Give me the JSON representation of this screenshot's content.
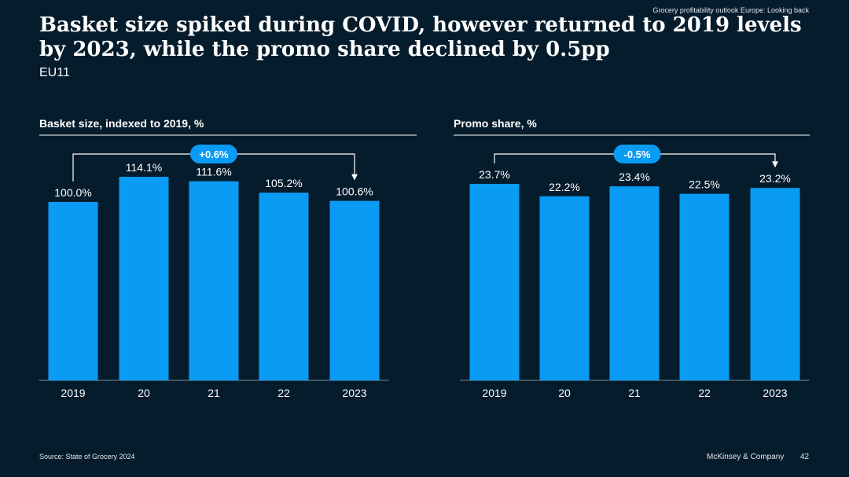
{
  "header": {
    "section": "Grocery profitability outlook Europe: Looking back",
    "title": "Basket size spiked during COVID, however returned to 2019 levels by 2023, while the promo share declined by 0.5pp",
    "subtitle": "EU11"
  },
  "footer": {
    "source": "Source: State of Grocery 2024",
    "brand": "McKinsey & Company",
    "page_number": "42"
  },
  "colors": {
    "background": "#051c2c",
    "bar": "#0a9bf5",
    "bubble": "#0a9bf5",
    "text": "#ffffff",
    "rule": "#ffffff"
  },
  "chart_data": [
    {
      "type": "bar",
      "title": "Basket size, indexed to 2019, %",
      "categories": [
        "2019",
        "20",
        "21",
        "22",
        "2023"
      ],
      "values": [
        100.0,
        114.1,
        111.6,
        105.2,
        100.6
      ],
      "labels": [
        "100.0%",
        "114.1%",
        "111.6%",
        "105.2%",
        "100.6%"
      ],
      "annotation": {
        "text": "+0.6%",
        "from": "2019",
        "to": "2023"
      },
      "xlabel": "",
      "ylabel": "",
      "grid": false,
      "legend": "none"
    },
    {
      "type": "bar",
      "title": "Promo share, %",
      "categories": [
        "2019",
        "20",
        "21",
        "22",
        "2023"
      ],
      "values": [
        23.7,
        22.2,
        23.4,
        22.5,
        23.2
      ],
      "labels": [
        "23.7%",
        "22.2%",
        "23.4%",
        "22.5%",
        "23.2%"
      ],
      "annotation": {
        "text": "-0.5%",
        "from": "2019",
        "to": "2023"
      },
      "xlabel": "",
      "ylabel": "",
      "grid": false,
      "legend": "none"
    }
  ]
}
